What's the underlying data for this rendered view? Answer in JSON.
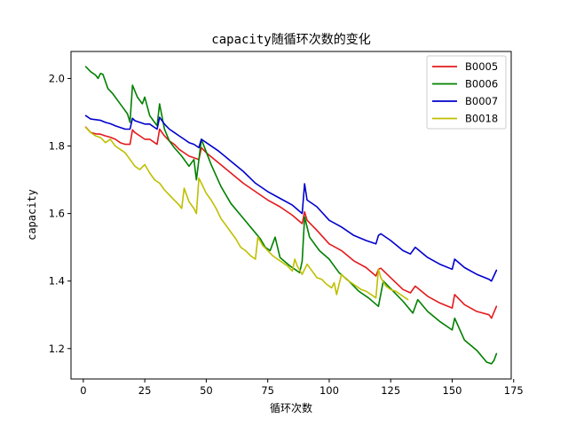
{
  "chart_data": {
    "type": "line",
    "title": "capacity随循环次数的变化",
    "xlabel": "循环次数",
    "ylabel": "capacity",
    "xlim": [
      -5,
      174
    ],
    "ylim": [
      1.11,
      2.08
    ],
    "xticks": [
      0,
      25,
      50,
      75,
      100,
      125,
      150,
      175
    ],
    "yticks": [
      1.2,
      1.4,
      1.6,
      1.8,
      2.0
    ],
    "xtick_labels": [
      "0",
      "25",
      "50",
      "75",
      "100",
      "125",
      "150",
      "175"
    ],
    "ytick_labels": [
      "1.2",
      "1.4",
      "1.6",
      "1.8",
      "2.0"
    ],
    "grid": false,
    "legend_position": "top-right",
    "series": [
      {
        "name": "B0005",
        "color": "#e31a1c",
        "x": [
          1,
          3,
          5,
          7,
          9,
          11,
          13,
          15,
          17,
          19,
          20,
          21,
          23,
          25,
          27,
          29,
          30,
          31,
          33,
          35,
          37,
          39,
          41,
          43,
          45,
          47,
          48,
          50,
          55,
          60,
          65,
          70,
          75,
          80,
          85,
          89,
          90,
          91,
          95,
          100,
          105,
          110,
          115,
          119,
          120,
          121,
          125,
          130,
          133,
          135,
          140,
          145,
          150,
          151,
          155,
          160,
          165,
          166,
          168
        ],
        "y": [
          1.856,
          1.84,
          1.836,
          1.835,
          1.83,
          1.826,
          1.82,
          1.81,
          1.805,
          1.805,
          1.848,
          1.84,
          1.83,
          1.82,
          1.82,
          1.81,
          1.805,
          1.85,
          1.83,
          1.815,
          1.805,
          1.79,
          1.78,
          1.77,
          1.765,
          1.76,
          1.795,
          1.78,
          1.75,
          1.72,
          1.69,
          1.665,
          1.64,
          1.62,
          1.595,
          1.57,
          1.605,
          1.58,
          1.55,
          1.51,
          1.49,
          1.46,
          1.44,
          1.415,
          1.435,
          1.438,
          1.41,
          1.375,
          1.365,
          1.385,
          1.355,
          1.335,
          1.32,
          1.36,
          1.33,
          1.31,
          1.3,
          1.29,
          1.325
        ]
      },
      {
        "name": "B0006",
        "color": "#008000",
        "x": [
          1,
          3,
          5,
          6,
          7,
          8,
          10,
          12,
          14,
          16,
          18,
          19,
          20,
          22,
          24,
          25,
          27,
          29,
          30,
          31,
          33,
          35,
          37,
          40,
          43,
          45,
          46,
          48,
          52,
          56,
          60,
          64,
          68,
          72,
          74,
          76,
          78,
          80,
          84,
          88,
          89,
          90,
          92,
          96,
          100,
          104,
          108,
          112,
          116,
          120,
          122,
          126,
          130,
          134,
          136,
          140,
          145,
          150,
          151,
          155,
          160,
          164,
          166,
          167,
          168
        ],
        "y": [
          2.035,
          2.02,
          2.01,
          2.0,
          2.015,
          2.012,
          1.97,
          1.955,
          1.935,
          1.915,
          1.895,
          1.87,
          1.98,
          1.945,
          1.925,
          1.945,
          1.89,
          1.87,
          1.86,
          1.925,
          1.85,
          1.815,
          1.795,
          1.77,
          1.74,
          1.76,
          1.7,
          1.82,
          1.745,
          1.68,
          1.63,
          1.595,
          1.56,
          1.525,
          1.5,
          1.49,
          1.53,
          1.47,
          1.445,
          1.425,
          1.46,
          1.59,
          1.53,
          1.49,
          1.465,
          1.425,
          1.4,
          1.37,
          1.35,
          1.325,
          1.4,
          1.37,
          1.34,
          1.305,
          1.345,
          1.31,
          1.28,
          1.255,
          1.29,
          1.225,
          1.195,
          1.16,
          1.155,
          1.165,
          1.185
        ]
      },
      {
        "name": "B0007",
        "color": "#0000cd",
        "x": [
          1,
          3,
          5,
          7,
          9,
          11,
          13,
          15,
          17,
          19,
          20,
          21,
          23,
          25,
          27,
          29,
          30,
          31,
          33,
          35,
          37,
          39,
          41,
          43,
          45,
          47,
          48,
          50,
          55,
          60,
          65,
          70,
          75,
          80,
          85,
          89,
          90,
          91,
          95,
          100,
          105,
          110,
          115,
          119,
          120,
          121,
          125,
          130,
          133,
          135,
          140,
          145,
          150,
          151,
          155,
          160,
          165,
          166,
          168
        ],
        "y": [
          1.89,
          1.88,
          1.878,
          1.876,
          1.87,
          1.866,
          1.86,
          1.855,
          1.85,
          1.85,
          1.882,
          1.875,
          1.87,
          1.865,
          1.865,
          1.855,
          1.85,
          1.885,
          1.865,
          1.85,
          1.84,
          1.83,
          1.82,
          1.81,
          1.805,
          1.795,
          1.82,
          1.81,
          1.785,
          1.755,
          1.725,
          1.69,
          1.665,
          1.645,
          1.625,
          1.6,
          1.688,
          1.64,
          1.62,
          1.58,
          1.56,
          1.535,
          1.52,
          1.51,
          1.535,
          1.54,
          1.52,
          1.49,
          1.48,
          1.5,
          1.47,
          1.45,
          1.435,
          1.465,
          1.44,
          1.42,
          1.405,
          1.4,
          1.432
        ]
      },
      {
        "name": "B0018",
        "color": "#bfbf00",
        "x": [
          1,
          3,
          5,
          7,
          9,
          11,
          13,
          15,
          17,
          19,
          21,
          23,
          25,
          27,
          29,
          31,
          33,
          35,
          37,
          39,
          40,
          41,
          43,
          45,
          46,
          47,
          48,
          50,
          52,
          54,
          56,
          58,
          60,
          62,
          64,
          66,
          68,
          70,
          71,
          73,
          75,
          77,
          79,
          81,
          83,
          85,
          86,
          87,
          89,
          91,
          93,
          95,
          97,
          99,
          101,
          102,
          103,
          105,
          107,
          109,
          111,
          113,
          115,
          117,
          119,
          120,
          121,
          123,
          125,
          127,
          129,
          131,
          132
        ],
        "y": [
          1.855,
          1.84,
          1.83,
          1.825,
          1.81,
          1.82,
          1.8,
          1.79,
          1.78,
          1.76,
          1.74,
          1.73,
          1.745,
          1.72,
          1.7,
          1.69,
          1.67,
          1.655,
          1.64,
          1.625,
          1.615,
          1.675,
          1.635,
          1.615,
          1.6,
          1.705,
          1.69,
          1.66,
          1.64,
          1.615,
          1.585,
          1.565,
          1.545,
          1.525,
          1.5,
          1.49,
          1.475,
          1.465,
          1.53,
          1.505,
          1.49,
          1.475,
          1.465,
          1.455,
          1.445,
          1.43,
          1.465,
          1.445,
          1.42,
          1.45,
          1.43,
          1.41,
          1.405,
          1.39,
          1.38,
          1.395,
          1.36,
          1.42,
          1.405,
          1.395,
          1.385,
          1.375,
          1.37,
          1.36,
          1.35,
          1.435,
          1.41,
          1.385,
          1.375,
          1.37,
          1.36,
          1.35,
          1.345
        ]
      }
    ]
  }
}
